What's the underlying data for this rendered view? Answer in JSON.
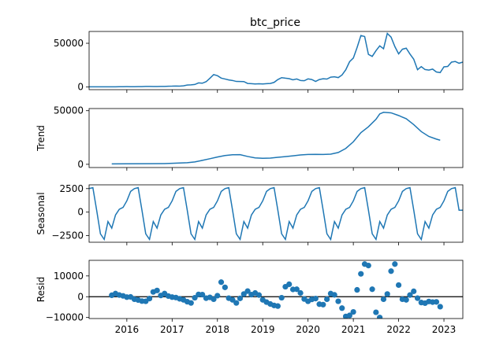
{
  "chart_data": {
    "type": "line",
    "title": "btc_price",
    "x_tick_labels": [
      "2016",
      "2017",
      "2018",
      "2019",
      "2020",
      "2021",
      "2022",
      "2023"
    ],
    "x_tick_values": [
      2016,
      2017,
      2018,
      2019,
      2020,
      2021,
      2022,
      2023
    ],
    "xlim": [
      2015.167,
      2023.417
    ],
    "line_color": "#1f77b4",
    "panels": [
      {
        "name": "btc_price",
        "ylabel": "",
        "ylim": [
          -3000,
          63500
        ],
        "yticks": [
          {
            "value": 0,
            "label": "0"
          },
          {
            "value": 50000,
            "label": "50000"
          }
        ],
        "x": [
          2015.167,
          2015.25,
          2015.333,
          2015.417,
          2015.5,
          2015.583,
          2015.667,
          2015.75,
          2015.833,
          2015.917,
          2016.0,
          2016.083,
          2016.167,
          2016.25,
          2016.333,
          2016.417,
          2016.5,
          2016.583,
          2016.667,
          2016.75,
          2016.833,
          2016.917,
          2017.0,
          2017.083,
          2017.167,
          2017.25,
          2017.333,
          2017.417,
          2017.5,
          2017.583,
          2017.667,
          2017.75,
          2017.833,
          2017.917,
          2018.0,
          2018.083,
          2018.167,
          2018.25,
          2018.333,
          2018.417,
          2018.5,
          2018.583,
          2018.667,
          2018.75,
          2018.833,
          2018.917,
          2019.0,
          2019.083,
          2019.167,
          2019.25,
          2019.333,
          2019.417,
          2019.5,
          2019.583,
          2019.667,
          2019.75,
          2019.833,
          2019.917,
          2020.0,
          2020.083,
          2020.167,
          2020.25,
          2020.333,
          2020.417,
          2020.5,
          2020.583,
          2020.667,
          2020.75,
          2020.833,
          2020.917,
          2021.0,
          2021.083,
          2021.167,
          2021.25,
          2021.333,
          2021.417,
          2021.5,
          2021.583,
          2021.667,
          2021.75,
          2021.833,
          2021.917,
          2022.0,
          2022.083,
          2022.167,
          2022.25,
          2022.333,
          2022.417,
          2022.5,
          2022.583,
          2022.667,
          2022.75,
          2022.833,
          2022.917,
          2023.0,
          2023.083,
          2023.167,
          2023.25,
          2023.333,
          2023.417
        ],
        "values": [
          250,
          260,
          240,
          250,
          280,
          230,
          240,
          270,
          330,
          420,
          430,
          400,
          420,
          450,
          530,
          670,
          660,
          580,
          610,
          700,
          740,
          970,
          1000,
          1190,
          1080,
          1350,
          2300,
          2500,
          2900,
          4700,
          4400,
          6100,
          10000,
          14200,
          13000,
          10200,
          9200,
          8100,
          7500,
          6400,
          6300,
          6200,
          4100,
          3800,
          3500,
          3700,
          3500,
          3800,
          4100,
          5300,
          8500,
          10700,
          10100,
          9600,
          8300,
          9200,
          7500,
          7200,
          9300,
          8600,
          6400,
          8600,
          9500,
          9100,
          11300,
          11700,
          10800,
          13800,
          19700,
          28900,
          33100,
          45200,
          58900,
          57700,
          37300,
          35000,
          41500,
          47100,
          43800,
          61300,
          57000,
          46200,
          37900,
          43200,
          44400,
          37700,
          31800,
          19800,
          23300,
          20000,
          19400,
          20500,
          17200,
          16500,
          23100,
          23500,
          28500,
          29200,
          27200,
          28500
        ]
      },
      {
        "name": "trend",
        "ylabel": "Trend",
        "ylim": [
          -3000,
          52000
        ],
        "yticks": [
          {
            "value": 0,
            "label": "0"
          },
          {
            "value": 50000,
            "label": "50000"
          }
        ],
        "x": [
          2015.667,
          2016.0,
          2016.5,
          2016.833,
          2017.0,
          2017.333,
          2017.5,
          2017.667,
          2017.833,
          2018.0,
          2018.167,
          2018.333,
          2018.5,
          2018.667,
          2018.833,
          2019.0,
          2019.167,
          2019.333,
          2019.5,
          2019.667,
          2019.833,
          2020.0,
          2020.167,
          2020.333,
          2020.5,
          2020.667,
          2020.833,
          2021.0,
          2021.167,
          2021.333,
          2021.5,
          2021.583,
          2021.667,
          2021.833,
          2022.0,
          2022.167,
          2022.333,
          2022.5,
          2022.667,
          2022.833,
          2022.917
        ],
        "values": [
          400,
          500,
          600,
          700,
          900,
          1500,
          2200,
          3700,
          5200,
          6800,
          8200,
          8900,
          9000,
          7300,
          6000,
          5600,
          5800,
          6500,
          7200,
          7900,
          8700,
          9200,
          9300,
          9200,
          9500,
          11000,
          14800,
          21000,
          29500,
          35000,
          42000,
          47000,
          48500,
          48000,
          45500,
          42500,
          37000,
          30500,
          26000,
          23500,
          22500
        ]
      },
      {
        "name": "seasonal",
        "ylabel": "Seasonal",
        "ylim": [
          -3200,
          2900
        ],
        "yticks": [
          {
            "value": 2500,
            "label": "2500"
          },
          {
            "value": 0,
            "label": "0"
          },
          {
            "value": -2500,
            "label": "−2500"
          }
        ],
        "pattern": [
          2500,
          2600,
          200,
          -2300,
          -2900,
          -1000,
          -1700,
          -300,
          300,
          500,
          1200,
          2200
        ],
        "start_year": 2015.167,
        "end_year": 2023.417,
        "last_value": 200
      },
      {
        "name": "resid",
        "ylabel": "Resid",
        "ylim": [
          -10500,
          17500
        ],
        "yticks": [
          {
            "value": 10000,
            "label": "10000"
          },
          {
            "value": 0,
            "label": "0"
          },
          {
            "value": -10000,
            "label": "−10000"
          }
        ],
        "x": [
          2015.667,
          2015.75,
          2015.833,
          2015.917,
          2016.0,
          2016.083,
          2016.167,
          2016.25,
          2016.333,
          2016.417,
          2016.5,
          2016.583,
          2016.667,
          2016.75,
          2016.833,
          2016.917,
          2017.0,
          2017.083,
          2017.167,
          2017.25,
          2017.333,
          2017.417,
          2017.5,
          2017.583,
          2017.667,
          2017.75,
          2017.833,
          2017.917,
          2018.0,
          2018.083,
          2018.167,
          2018.25,
          2018.333,
          2018.417,
          2018.5,
          2018.583,
          2018.667,
          2018.75,
          2018.833,
          2018.917,
          2019.0,
          2019.083,
          2019.167,
          2019.25,
          2019.333,
          2019.417,
          2019.5,
          2019.583,
          2019.667,
          2019.75,
          2019.833,
          2019.917,
          2020.0,
          2020.083,
          2020.167,
          2020.25,
          2020.333,
          2020.417,
          2020.5,
          2020.583,
          2020.667,
          2020.75,
          2020.833,
          2020.917,
          2021.0,
          2021.083,
          2021.167,
          2021.25,
          2021.333,
          2021.417,
          2021.5,
          2021.583,
          2021.667,
          2021.75,
          2021.833,
          2021.917,
          2022.0,
          2022.083,
          2022.167,
          2022.25,
          2022.333,
          2022.417,
          2022.5,
          2022.583,
          2022.667,
          2022.75,
          2022.833,
          2022.917
        ],
        "values": [
          700,
          1500,
          800,
          400,
          -200,
          -100,
          -1200,
          -1600,
          -2100,
          -2200,
          -900,
          2300,
          3000,
          600,
          1500,
          300,
          -200,
          -400,
          -1000,
          -1500,
          -2400,
          -3000,
          -500,
          1100,
          1000,
          -700,
          -300,
          -1200,
          500,
          7000,
          4500,
          -700,
          -1500,
          -3000,
          -800,
          1300,
          2700,
          1000,
          1800,
          800,
          -1500,
          -2600,
          -3500,
          -4200,
          -4500,
          -500,
          4800,
          6000,
          3500,
          3600,
          1800,
          -1100,
          -2200,
          -1300,
          -900,
          -3600,
          -3800,
          -1200,
          1500,
          900,
          -2200,
          -5500,
          -9500,
          -9000,
          -7300,
          3300,
          11000,
          15700,
          15000,
          3600,
          -7500,
          -10000,
          -1200,
          1300,
          12300,
          15700,
          5600,
          -1200,
          -1500,
          800,
          2600,
          -700,
          -2800,
          -3100,
          -2300,
          -2600,
          -2500,
          -4800
        ]
      }
    ]
  }
}
